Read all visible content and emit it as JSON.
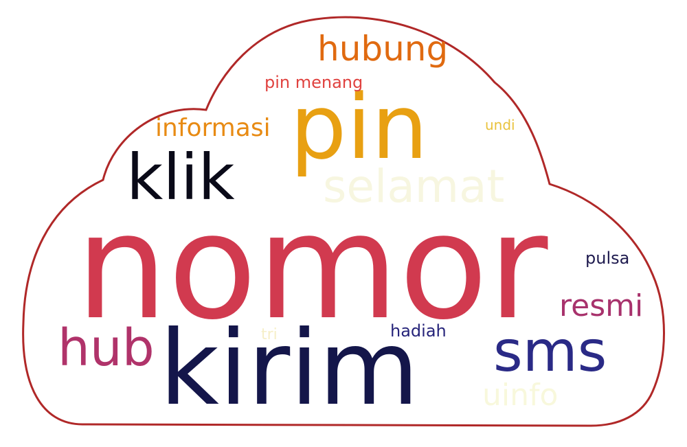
{
  "words": [
    {
      "text": "nomor",
      "color": "#d13a4f"
    },
    {
      "text": "kirim",
      "color": "#14164a"
    },
    {
      "text": "pin",
      "color": "#e8a012"
    },
    {
      "text": "klik",
      "color": "#0a0a18"
    },
    {
      "text": "sms",
      "color": "#2a2a86"
    },
    {
      "text": "hub",
      "color": "#b0336a"
    },
    {
      "text": "resmi",
      "color": "#a8326c"
    },
    {
      "text": "selamat",
      "color": "#f7f6e0"
    },
    {
      "text": "hubung",
      "color": "#e06a10"
    },
    {
      "text": "informasi",
      "color": "#e88b14"
    },
    {
      "text": "pin menang",
      "color": "#e0423f"
    },
    {
      "text": "undi",
      "color": "#e9c23c"
    },
    {
      "text": "pulsa",
      "color": "#1e1a4e"
    },
    {
      "text": "hadiah",
      "color": "#26247a"
    },
    {
      "text": "uinfo",
      "color": "#f8f8dc"
    },
    {
      "text": "tri",
      "color": "#f6efc8"
    }
  ],
  "colors": {
    "background": "#ffffff",
    "cloud_outline": "#b02828"
  }
}
